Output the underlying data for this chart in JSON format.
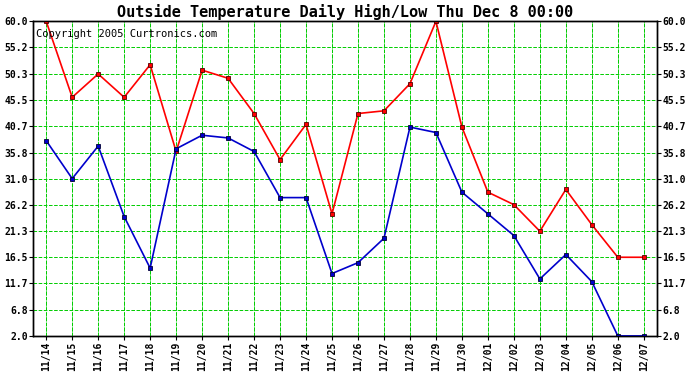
{
  "title": "Outside Temperature Daily High/Low Thu Dec 8 00:00",
  "copyright": "Copyright 2005 Curtronics.com",
  "x_labels": [
    "11/14",
    "11/15",
    "11/16",
    "11/17",
    "11/18",
    "11/19",
    "11/20",
    "11/21",
    "11/22",
    "11/23",
    "11/24",
    "11/25",
    "11/26",
    "11/27",
    "11/28",
    "11/29",
    "11/30",
    "12/01",
    "12/02",
    "12/03",
    "12/04",
    "12/05",
    "12/06",
    "12/07"
  ],
  "high_values": [
    60.0,
    46.0,
    50.3,
    46.0,
    52.0,
    36.0,
    51.0,
    49.5,
    43.0,
    34.5,
    41.0,
    24.5,
    43.0,
    43.5,
    48.5,
    60.0,
    40.5,
    28.5,
    26.2,
    21.3,
    29.0,
    22.5,
    16.5,
    16.5
  ],
  "low_values": [
    38.0,
    31.0,
    37.0,
    24.0,
    14.5,
    36.5,
    39.0,
    38.5,
    36.0,
    27.5,
    27.5,
    13.5,
    15.5,
    20.0,
    40.5,
    39.5,
    28.5,
    24.5,
    20.5,
    12.5,
    17.0,
    12.0,
    2.0,
    2.0
  ],
  "high_color": "#ff0000",
  "low_color": "#0000cc",
  "bg_color": "#ffffff",
  "grid_color": "#00cc00",
  "yticks": [
    2.0,
    6.8,
    11.7,
    16.5,
    21.3,
    26.2,
    31.0,
    35.8,
    40.7,
    45.5,
    50.3,
    55.2,
    60.0
  ],
  "ylim": [
    2.0,
    60.0
  ],
  "title_fontsize": 11,
  "label_fontsize": 7,
  "copyright_fontsize": 7.5
}
